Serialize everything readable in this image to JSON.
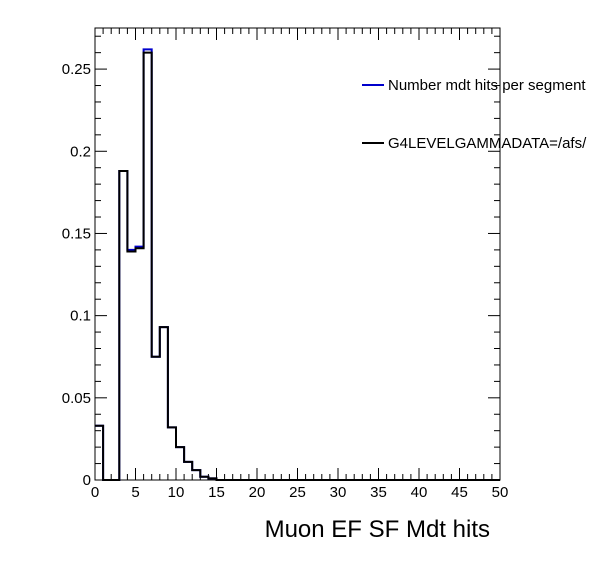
{
  "chart_data": {
    "type": "histogram",
    "xlabel": "Muon EF SF Mdt hits",
    "ylabel": "",
    "xlim": [
      0,
      50
    ],
    "ylim": [
      0,
      0.275
    ],
    "bin_width": 1,
    "x_ticks": [
      "0",
      "5",
      "10",
      "15",
      "20",
      "25",
      "30",
      "35",
      "40",
      "45",
      "50"
    ],
    "y_ticks": [
      "0",
      "0.05",
      "0.1",
      "0.15",
      "0.2",
      "0.25"
    ],
    "legend_position": "top-right",
    "series": [
      {
        "name": "Number mdt hits per segment",
        "color": "#0000cc",
        "bin_edges_start": 0,
        "values": [
          0.033,
          0,
          0,
          0.188,
          0.14,
          0.142,
          0.262,
          0.075,
          0.093,
          0.032,
          0.02,
          0.011,
          0.006,
          0.002,
          0.001,
          0,
          0,
          0,
          0,
          0,
          0,
          0,
          0,
          0,
          0,
          0,
          0,
          0,
          0,
          0,
          0,
          0,
          0,
          0,
          0,
          0,
          0,
          0,
          0,
          0,
          0,
          0,
          0,
          0,
          0,
          0,
          0,
          0,
          0,
          0
        ]
      },
      {
        "name": "G4LEVELGAMMADATA=/afs/",
        "color": "#000000",
        "bin_edges_start": 0,
        "values": [
          0.033,
          0,
          0,
          0.188,
          0.139,
          0.141,
          0.26,
          0.075,
          0.093,
          0.032,
          0.02,
          0.011,
          0.006,
          0.002,
          0.001,
          0,
          0,
          0,
          0,
          0,
          0,
          0,
          0,
          0,
          0,
          0,
          0,
          0,
          0,
          0,
          0,
          0,
          0,
          0,
          0,
          0,
          0,
          0,
          0,
          0,
          0,
          0,
          0,
          0,
          0,
          0,
          0,
          0,
          0,
          0
        ]
      }
    ]
  },
  "legend": {
    "entries": [
      {
        "label": "Number mdt hits per segment",
        "color": "#0000cc"
      },
      {
        "label": "G4LEVELGAMMADATA=/afs/",
        "color": "#000000"
      }
    ]
  }
}
